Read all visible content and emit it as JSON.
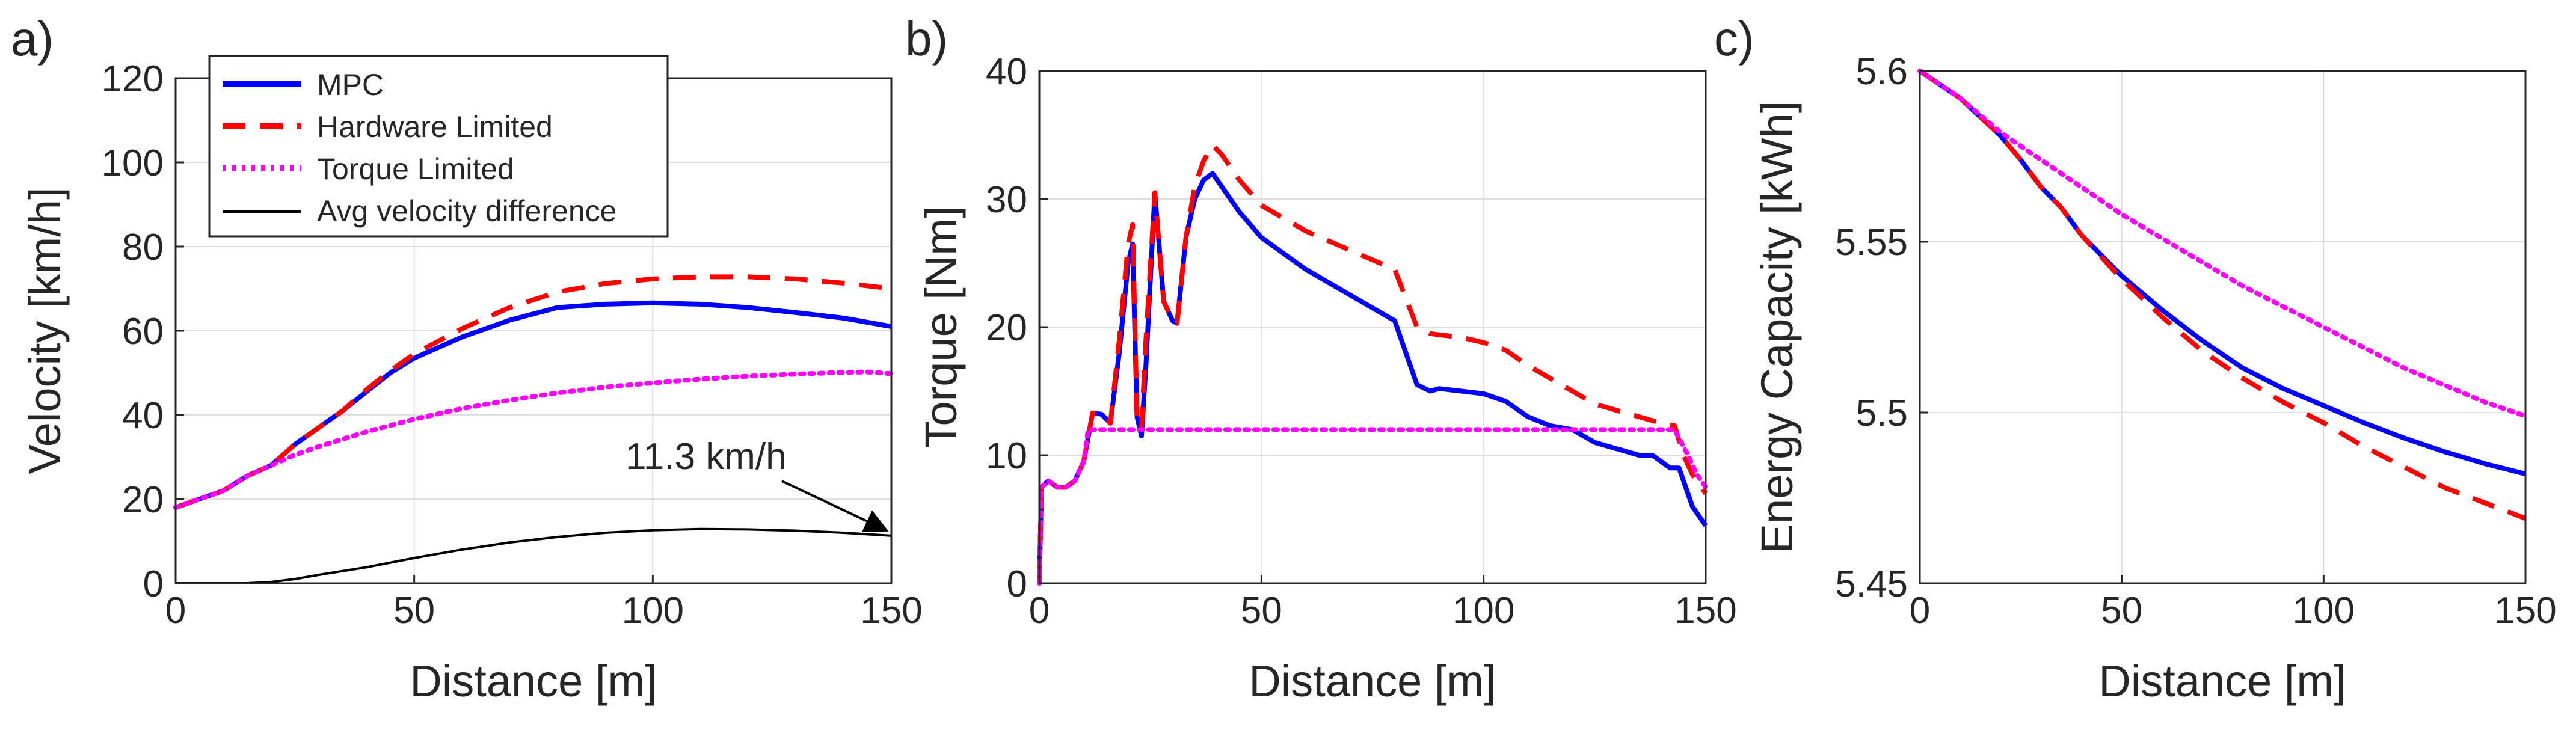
{
  "chart_data": [
    {
      "type": "line",
      "panel_label": "a)",
      "xlabel": "Distance [m]",
      "ylabel": "Velocity [km/h]",
      "xlim": [
        0,
        150
      ],
      "ylim": [
        0,
        120
      ],
      "xticks": [
        0,
        50,
        100,
        150
      ],
      "yticks": [
        0,
        20,
        40,
        60,
        80,
        100,
        120
      ],
      "grid": true,
      "legend": {
        "position": "top-left",
        "entries": [
          {
            "label": "MPC",
            "color": "#0000ff",
            "style": "solid"
          },
          {
            "label": "Hardware Limited",
            "color": "#ff0000",
            "style": "dashed"
          },
          {
            "label": "Torque Limited",
            "color": "#ff00ff",
            "style": "dotted"
          },
          {
            "label": "Avg velocity difference",
            "color": "#000000",
            "style": "solid-thin"
          }
        ]
      },
      "annotations": [
        {
          "text": "11.3 km/h",
          "points_to": {
            "x": 150,
            "y": 11.3
          }
        }
      ],
      "series": [
        {
          "name": "MPC",
          "color": "#0000ff",
          "style": "solid",
          "x": [
            0,
            5,
            10,
            15,
            20,
            25,
            30,
            35,
            40,
            45,
            50,
            60,
            70,
            80,
            90,
            100,
            110,
            120,
            130,
            140,
            150
          ],
          "y": [
            18,
            20,
            22,
            25.5,
            28,
            33,
            37,
            41,
            45.5,
            50,
            53.5,
            58.5,
            62.5,
            65.5,
            66.3,
            66.6,
            66.3,
            65.5,
            64.3,
            63,
            61
          ]
        },
        {
          "name": "Hardware Limited",
          "color": "#ff0000",
          "style": "dashed",
          "x": [
            0,
            5,
            10,
            15,
            20,
            25,
            30,
            35,
            40,
            45,
            50,
            60,
            70,
            80,
            90,
            100,
            110,
            120,
            130,
            140,
            150
          ],
          "y": [
            18,
            20,
            22,
            25.5,
            28,
            33,
            37,
            41,
            46,
            50.5,
            54.5,
            60.5,
            65.5,
            69.2,
            71.2,
            72.3,
            72.8,
            72.8,
            72.3,
            71.3,
            70
          ]
        },
        {
          "name": "Torque Limited",
          "color": "#ff00ff",
          "style": "dotted",
          "x": [
            0,
            5,
            10,
            15,
            20,
            25,
            30,
            40,
            50,
            60,
            70,
            80,
            90,
            100,
            110,
            120,
            130,
            140,
            145,
            150
          ],
          "y": [
            18,
            20,
            22,
            25.5,
            28,
            30.5,
            32.5,
            36,
            39,
            41.5,
            43.5,
            45.2,
            46.6,
            47.6,
            48.5,
            49.2,
            49.7,
            50.1,
            50.2,
            49.8
          ]
        },
        {
          "name": "Avg velocity difference",
          "color": "#000000",
          "style": "solid-thin",
          "x": [
            0,
            10,
            15,
            20,
            25,
            30,
            40,
            50,
            60,
            70,
            80,
            90,
            100,
            110,
            120,
            130,
            140,
            150
          ],
          "y": [
            0,
            0,
            0,
            0.3,
            1,
            2,
            3.8,
            6,
            8,
            9.7,
            11,
            12,
            12.6,
            12.9,
            12.8,
            12.5,
            12,
            11.3
          ]
        }
      ]
    },
    {
      "type": "line",
      "panel_label": "b)",
      "xlabel": "Distance [m]",
      "ylabel": "Torque [Nm]",
      "xlim": [
        0,
        150
      ],
      "ylim": [
        0,
        40
      ],
      "xticks": [
        0,
        50,
        100,
        150
      ],
      "yticks": [
        0,
        10,
        20,
        30,
        40
      ],
      "grid": true,
      "series": [
        {
          "name": "MPC",
          "color": "#0000ff",
          "style": "solid",
          "x": [
            0,
            0.5,
            2,
            4,
            6,
            8,
            10,
            12,
            14,
            16,
            18,
            20,
            21,
            22,
            23,
            24,
            26,
            28,
            30,
            31,
            33,
            35,
            37,
            39,
            41,
            45,
            50,
            60,
            70,
            80,
            85,
            88,
            90,
            95,
            100,
            105,
            110,
            115,
            120,
            125,
            130,
            135,
            138,
            140,
            142,
            144,
            147,
            150
          ],
          "y": [
            0,
            7.5,
            8,
            7.5,
            7.5,
            8,
            9.5,
            13.3,
            13.2,
            12.5,
            18,
            25,
            26.5,
            13,
            11.5,
            17,
            30.5,
            22,
            20.5,
            20.3,
            27,
            30,
            31.5,
            32,
            31,
            29,
            27,
            24.5,
            22.5,
            20.5,
            15.5,
            15,
            15.2,
            15,
            14.8,
            14.2,
            13,
            12.3,
            12,
            11,
            10.5,
            10,
            10,
            9.5,
            9,
            9,
            6,
            4.5
          ]
        },
        {
          "name": "Hardware Limited",
          "color": "#ff0000",
          "style": "dashed",
          "x": [
            0,
            0.5,
            2,
            4,
            6,
            8,
            10,
            12,
            14,
            16,
            18,
            20,
            21,
            22,
            23,
            24,
            26,
            28,
            30,
            31,
            33,
            35,
            37,
            39,
            41,
            45,
            50,
            60,
            70,
            80,
            85,
            88,
            90,
            95,
            100,
            105,
            110,
            115,
            120,
            125,
            130,
            135,
            140,
            143,
            145,
            147,
            150
          ],
          "y": [
            0,
            7.5,
            8,
            7.5,
            7.5,
            8,
            9.5,
            13.3,
            13.2,
            12.5,
            19,
            26.5,
            28,
            13,
            12,
            19,
            30.5,
            22,
            20.5,
            20.3,
            27,
            31,
            33,
            34.2,
            33.5,
            31.5,
            29.5,
            27.5,
            26,
            24.5,
            20,
            19.5,
            19.4,
            19.2,
            18.8,
            18.2,
            17,
            16,
            15,
            14,
            13.5,
            13,
            12.5,
            12.3,
            10,
            8.5,
            7
          ]
        },
        {
          "name": "Torque Limited",
          "color": "#ff00ff",
          "style": "dotted",
          "x": [
            0,
            0.5,
            2,
            4,
            6,
            8,
            10,
            11,
            12,
            143,
            146,
            148,
            150
          ],
          "y": [
            0,
            7.5,
            8,
            7.5,
            7.5,
            8,
            9.5,
            12,
            12,
            12,
            10,
            8.5,
            7.5
          ]
        }
      ]
    },
    {
      "type": "line",
      "panel_label": "c)",
      "xlabel": "Distance [m]",
      "ylabel": "Energy Capacity [kWh]",
      "xlim": [
        0,
        150
      ],
      "ylim": [
        5.45,
        5.6
      ],
      "xticks": [
        0,
        50,
        100,
        150
      ],
      "yticks": [
        5.45,
        5.5,
        5.55,
        5.6
      ],
      "grid": true,
      "series": [
        {
          "name": "MPC",
          "color": "#0000ff",
          "style": "solid",
          "x": [
            0,
            10,
            20,
            25,
            30,
            35,
            40,
            50,
            60,
            70,
            80,
            90,
            100,
            110,
            120,
            130,
            140,
            150
          ],
          "y": [
            5.6,
            5.592,
            5.581,
            5.574,
            5.566,
            5.56,
            5.552,
            5.54,
            5.53,
            5.521,
            5.513,
            5.507,
            5.502,
            5.497,
            5.4925,
            5.4885,
            5.485,
            5.482
          ]
        },
        {
          "name": "Hardware Limited",
          "color": "#ff0000",
          "style": "dashed",
          "x": [
            0,
            10,
            20,
            25,
            30,
            35,
            40,
            50,
            60,
            70,
            80,
            90,
            100,
            110,
            120,
            130,
            140,
            150
          ],
          "y": [
            5.6,
            5.592,
            5.581,
            5.574,
            5.566,
            5.56,
            5.552,
            5.539,
            5.528,
            5.518,
            5.51,
            5.503,
            5.497,
            5.49,
            5.484,
            5.478,
            5.4735,
            5.469
          ]
        },
        {
          "name": "Torque Limited",
          "color": "#ff00ff",
          "style": "dotted",
          "x": [
            0,
            10,
            20,
            30,
            40,
            50,
            60,
            70,
            80,
            90,
            100,
            110,
            120,
            130,
            140,
            150
          ],
          "y": [
            5.6,
            5.592,
            5.582,
            5.574,
            5.566,
            5.558,
            5.551,
            5.544,
            5.537,
            5.531,
            5.525,
            5.519,
            5.513,
            5.508,
            5.503,
            5.499
          ]
        }
      ]
    }
  ]
}
